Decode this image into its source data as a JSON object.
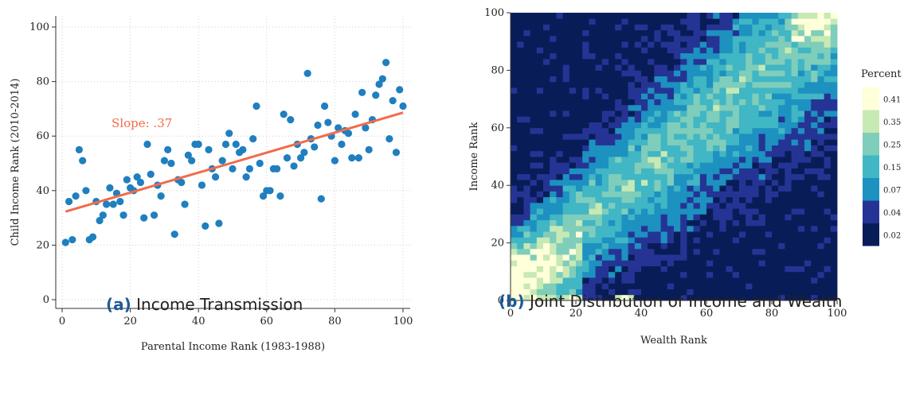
{
  "colors": {
    "scatter_point": "#1f7fbf",
    "fit_line": "#f26b4a",
    "slope_text": "#f26b4a",
    "caption_label": "#1f5a93",
    "heatmap_scale": [
      "#081d58",
      "#253494",
      "#1d91c0",
      "#41b6c4",
      "#7fcdbb",
      "#c7e9b4",
      "#ffffd9"
    ]
  },
  "captions": [
    {
      "label": "(a)",
      "text": "Income Transmission"
    },
    {
      "label": "(b)",
      "text": "Joint Distribution of Income and Wealth"
    }
  ],
  "chart_data": [
    {
      "type": "scatter",
      "xlabel": "Parental Income Rank (1983-1988)",
      "ylabel": "Child Income Rank (2010-2014)",
      "xlim": [
        0,
        100
      ],
      "ylim": [
        0,
        100
      ],
      "xticks": [
        "0",
        "20",
        "40",
        "60",
        "80",
        "100"
      ],
      "yticks": [
        "0",
        "20",
        "40",
        "60",
        "80",
        "100"
      ],
      "grid": true,
      "annotation": "Slope: .37",
      "fit_line": {
        "x": [
          1,
          100
        ],
        "y": [
          32.3,
          68.6
        ]
      },
      "x": [
        1,
        2,
        3,
        4,
        5,
        6,
        7,
        8,
        9,
        10,
        11,
        12,
        13,
        14,
        15,
        16,
        17,
        18,
        19,
        20,
        21,
        22,
        23,
        24,
        25,
        26,
        27,
        28,
        29,
        30,
        31,
        32,
        33,
        34,
        35,
        36,
        37,
        38,
        39,
        40,
        41,
        42,
        43,
        44,
        45,
        46,
        47,
        48,
        49,
        50,
        51,
        52,
        53,
        54,
        55,
        56,
        57,
        58,
        59,
        60,
        61,
        62,
        63,
        64,
        65,
        66,
        67,
        68,
        69,
        70,
        71,
        72,
        73,
        74,
        75,
        76,
        77,
        78,
        79,
        80,
        81,
        82,
        83,
        84,
        85,
        86,
        87,
        88,
        89,
        90,
        91,
        92,
        93,
        94,
        95,
        96,
        97,
        98,
        99,
        100
      ],
      "y": [
        21,
        36,
        22,
        38,
        55,
        51,
        40,
        22,
        23,
        36,
        29,
        31,
        35,
        41,
        35,
        39,
        36,
        31,
        44,
        41,
        40,
        45,
        43,
        30,
        57,
        46,
        31,
        42,
        38,
        51,
        55,
        50,
        24,
        44,
        43,
        35,
        53,
        51,
        57,
        57,
        42,
        27,
        55,
        48,
        45,
        28,
        51,
        57,
        61,
        48,
        57,
        54,
        55,
        45,
        48,
        59,
        71,
        50,
        38,
        40,
        40,
        48,
        48,
        38,
        68,
        52,
        66,
        49,
        57,
        52,
        54,
        83,
        59,
        56,
        64,
        37,
        71,
        65,
        60,
        51,
        63,
        57,
        62,
        61,
        52,
        68,
        52,
        76,
        63,
        55,
        66,
        75,
        79,
        81,
        87,
        59,
        73,
        54,
        77,
        71
      ]
    },
    {
      "type": "heatmap",
      "xlabel": "Wealth Rank",
      "ylabel": "Income Rank",
      "xlim": [
        0,
        100
      ],
      "ylim": [
        0,
        100
      ],
      "xticks": [
        "0",
        "20",
        "40",
        "60",
        "80",
        "100"
      ],
      "yticks": [
        "0",
        "20",
        "40",
        "60",
        "80",
        "100"
      ],
      "grid_size": 50,
      "legend": {
        "title": "Percent",
        "placement": "right",
        "labels": [
          "0.41",
          "0.35",
          "0.25",
          "0.15",
          "0.07",
          "0.04",
          "0.02"
        ]
      }
    }
  ]
}
